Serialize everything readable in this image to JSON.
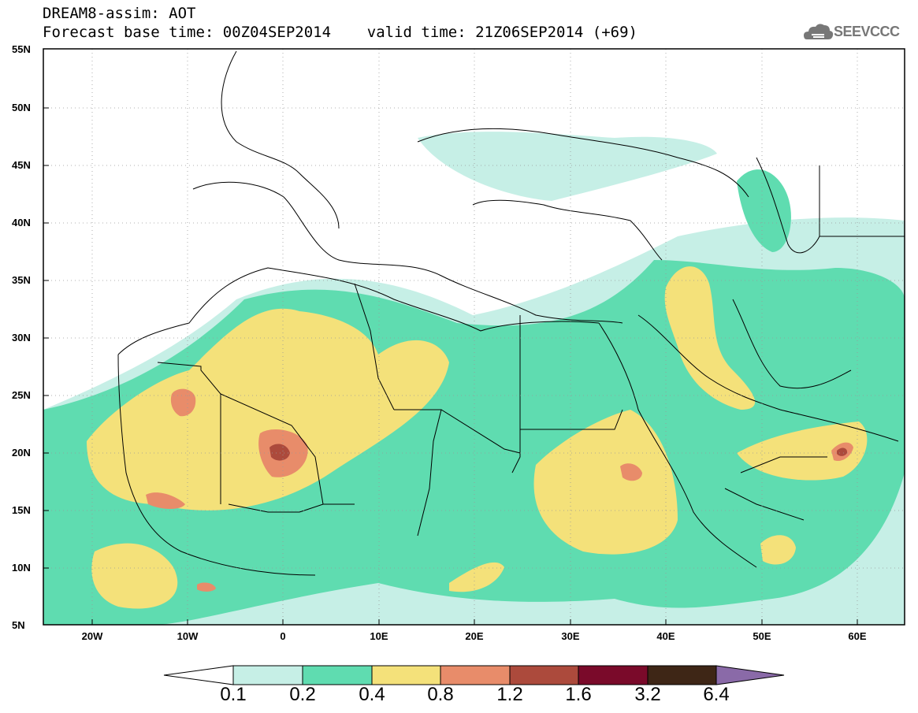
{
  "header": {
    "line1": "DREAM8-assim: AOT",
    "line2": "Forecast base time: 00Z04SEP2014    valid time: 21Z06SEP2014 (+69)"
  },
  "logo": {
    "text": "SEEVCCC",
    "icon": "cloud-icon"
  },
  "map": {
    "lat_ticks": [
      "55N",
      "50N",
      "45N",
      "40N",
      "35N",
      "30N",
      "25N",
      "20N",
      "15N",
      "10N",
      "5N"
    ],
    "lon_ticks": [
      "20W",
      "10W",
      "0",
      "10E",
      "20E",
      "30E",
      "40E",
      "50E",
      "60E"
    ]
  },
  "colorbar": {
    "labels": [
      "0.1",
      "0.2",
      "0.4",
      "0.8",
      "1.2",
      "1.6",
      "3.2",
      "6.4"
    ],
    "colors": [
      "#ffffff",
      "#c6efe6",
      "#5fdcb0",
      "#f4e17a",
      "#e88c6a",
      "#ac4a3c",
      "#7a0a2a",
      "#3e2616",
      "#8a6aa8"
    ]
  }
}
